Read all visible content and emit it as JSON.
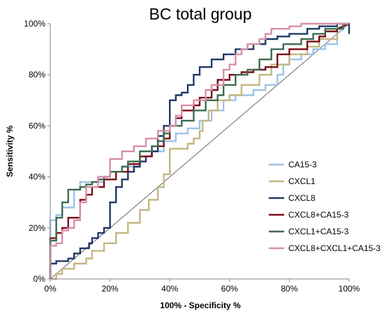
{
  "chart_data": {
    "type": "line",
    "title": "BC total group",
    "xlabel": "100% - Specificity %",
    "ylabel": "Sensitivity %",
    "xlim": [
      0,
      100
    ],
    "ylim": [
      0,
      100
    ],
    "x_ticks": [
      "0%",
      "20%",
      "40%",
      "60%",
      "80%",
      "100%"
    ],
    "y_ticks": [
      "0%",
      "20%",
      "40%",
      "60%",
      "80%",
      "100%"
    ],
    "grid": false,
    "legend_position": "right",
    "reference_line": true,
    "series": [
      {
        "name": "CA15-3",
        "color": "#9dc3e6",
        "x": [
          0,
          0,
          2,
          2,
          4,
          4,
          8,
          8,
          10,
          10,
          18,
          18,
          20,
          20,
          24,
          24,
          28,
          28,
          32,
          32,
          34,
          34,
          38,
          38,
          42,
          42,
          46,
          46,
          50,
          50,
          54,
          54,
          58,
          58,
          62,
          62,
          68,
          68,
          72,
          72,
          76,
          76,
          78,
          78,
          80,
          80,
          84,
          84,
          88,
          88,
          92,
          92,
          96,
          96,
          100
        ],
        "y": [
          0,
          23,
          23,
          25,
          25,
          28,
          28,
          35,
          35,
          38,
          38,
          40,
          40,
          42,
          42,
          44,
          44,
          46,
          46,
          48,
          48,
          50,
          50,
          54,
          54,
          57,
          57,
          59,
          59,
          62,
          62,
          66,
          66,
          70,
          70,
          72,
          72,
          74,
          74,
          76,
          76,
          80,
          80,
          84,
          84,
          86,
          86,
          88,
          88,
          90,
          90,
          92,
          92,
          96,
          100
        ]
      },
      {
        "name": "CXCL1",
        "color": "#c4b581",
        "x": [
          0,
          2,
          2,
          4,
          4,
          8,
          8,
          12,
          12,
          14,
          14,
          18,
          18,
          22,
          22,
          26,
          26,
          30,
          30,
          33,
          33,
          36,
          36,
          38,
          38,
          40,
          40,
          46,
          46,
          48,
          48,
          50,
          50,
          51,
          51,
          53,
          53,
          56,
          56,
          60,
          60,
          64,
          64,
          70,
          70,
          74,
          74,
          80,
          80,
          86,
          86,
          90,
          90,
          96,
          96,
          100
        ],
        "y": [
          0,
          0,
          2,
          2,
          4,
          4,
          6,
          6,
          8,
          8,
          11,
          11,
          14,
          14,
          18,
          18,
          22,
          22,
          27,
          27,
          31,
          31,
          36,
          36,
          41,
          41,
          51,
          51,
          53,
          53,
          55,
          55,
          58,
          58,
          62,
          62,
          66,
          66,
          70,
          70,
          72,
          72,
          76,
          76,
          80,
          80,
          84,
          84,
          88,
          88,
          91,
          91,
          94,
          94,
          98,
          100
        ]
      },
      {
        "name": "CXCL8",
        "color": "#1f3864",
        "x": [
          0,
          0,
          2,
          2,
          6,
          6,
          8,
          8,
          10,
          10,
          13,
          13,
          14,
          14,
          16,
          16,
          18,
          18,
          20,
          20,
          22,
          22,
          24,
          24,
          26,
          26,
          28,
          28,
          30,
          30,
          32,
          32,
          34,
          34,
          36,
          36,
          38,
          38,
          40,
          40,
          42,
          42,
          44,
          44,
          46,
          46,
          48,
          48,
          50,
          50,
          54,
          54,
          58,
          58,
          62,
          62,
          68,
          68,
          72,
          72,
          76,
          76,
          80,
          80,
          86,
          86,
          90,
          90,
          96,
          96,
          100,
          100
        ],
        "y": [
          0,
          6,
          6,
          7,
          7,
          8,
          8,
          10,
          10,
          12,
          12,
          14,
          14,
          16,
          16,
          18,
          18,
          20,
          20,
          30,
          30,
          36,
          36,
          39,
          39,
          42,
          42,
          44,
          44,
          46,
          46,
          48,
          48,
          50,
          50,
          56,
          56,
          60,
          60,
          70,
          70,
          72,
          72,
          73,
          73,
          76,
          76,
          80,
          80,
          83,
          83,
          86,
          86,
          88,
          88,
          90,
          90,
          92,
          92,
          94,
          94,
          95,
          95,
          96,
          96,
          98,
          98,
          99,
          99,
          100,
          100,
          96
        ]
      },
      {
        "name": "CXCL8+CA15-3",
        "color": "#7b0c15",
        "x": [
          0,
          0,
          2,
          2,
          4,
          4,
          6,
          6,
          10,
          10,
          12,
          12,
          14,
          14,
          18,
          18,
          22,
          22,
          26,
          26,
          30,
          30,
          34,
          34,
          38,
          38,
          40,
          40,
          42,
          42,
          44,
          44,
          48,
          48,
          50,
          50,
          54,
          54,
          56,
          56,
          60,
          60,
          64,
          64,
          68,
          68,
          72,
          72,
          76,
          76,
          80,
          80,
          86,
          86,
          90,
          90,
          92,
          92,
          96,
          96,
          100
        ],
        "y": [
          0,
          16,
          16,
          18,
          18,
          20,
          20,
          24,
          24,
          31,
          31,
          33,
          33,
          36,
          36,
          39,
          39,
          42,
          42,
          45,
          45,
          48,
          48,
          52,
          52,
          55,
          55,
          60,
          60,
          63,
          63,
          66,
          66,
          68,
          68,
          71,
          71,
          74,
          74,
          78,
          78,
          80,
          80,
          81,
          81,
          82,
          82,
          83,
          83,
          88,
          88,
          90,
          90,
          93,
          93,
          95,
          95,
          97,
          97,
          98,
          100
        ]
      },
      {
        "name": "CXCL1+CA15-3",
        "color": "#3d6b4f",
        "x": [
          0,
          0,
          2,
          2,
          4,
          4,
          6,
          6,
          10,
          10,
          12,
          12,
          14,
          14,
          16,
          16,
          18,
          18,
          20,
          20,
          24,
          24,
          26,
          26,
          30,
          30,
          34,
          34,
          36,
          36,
          38,
          38,
          40,
          40,
          44,
          44,
          48,
          48,
          52,
          52,
          56,
          56,
          58,
          58,
          62,
          62,
          66,
          66,
          70,
          70,
          74,
          74,
          78,
          78,
          84,
          84,
          88,
          88,
          92,
          92,
          98,
          98,
          100
        ],
        "y": [
          0,
          15,
          15,
          24,
          24,
          30,
          30,
          35,
          35,
          36,
          36,
          37,
          37,
          38,
          38,
          39,
          39,
          40,
          40,
          42,
          42,
          44,
          44,
          46,
          46,
          50,
          50,
          52,
          52,
          54,
          54,
          57,
          57,
          60,
          60,
          62,
          62,
          66,
          66,
          70,
          70,
          72,
          72,
          76,
          76,
          80,
          80,
          82,
          82,
          86,
          86,
          90,
          90,
          92,
          92,
          94,
          94,
          96,
          96,
          98,
          98,
          100,
          100
        ]
      },
      {
        "name": "CXCL8+CXCL1+CA15-3",
        "color": "#d68fa8",
        "x": [
          0,
          0,
          2,
          2,
          4,
          4,
          6,
          6,
          8,
          8,
          10,
          10,
          12,
          12,
          16,
          16,
          20,
          20,
          24,
          24,
          28,
          28,
          32,
          32,
          36,
          36,
          40,
          40,
          42,
          42,
          44,
          44,
          48,
          48,
          52,
          52,
          54,
          54,
          58,
          58,
          60,
          60,
          62,
          62,
          64,
          64,
          66,
          66,
          70,
          70,
          72,
          72,
          74,
          74,
          80,
          80,
          84,
          84,
          100
        ],
        "y": [
          0,
          13,
          13,
          14,
          14,
          19,
          19,
          20,
          20,
          23,
          23,
          30,
          30,
          36,
          36,
          40,
          40,
          47,
          47,
          50,
          50,
          52,
          52,
          55,
          55,
          58,
          58,
          60,
          60,
          64,
          64,
          68,
          68,
          70,
          70,
          74,
          74,
          76,
          76,
          82,
          82,
          84,
          84,
          88,
          88,
          90,
          90,
          92,
          92,
          94,
          94,
          96,
          96,
          98,
          98,
          99,
          99,
          100,
          100
        ]
      }
    ]
  }
}
